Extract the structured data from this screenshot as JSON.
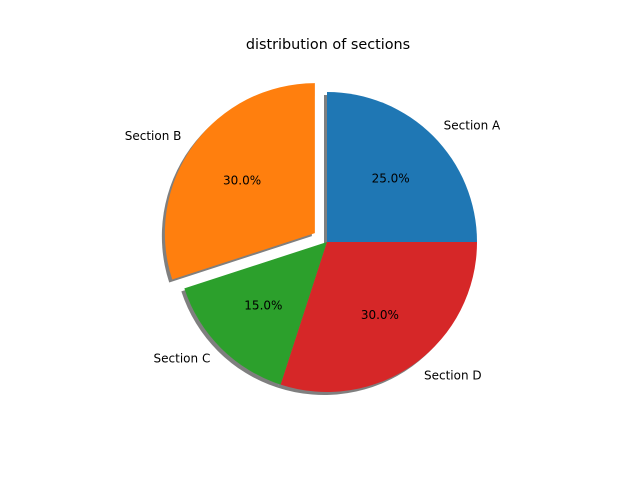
{
  "chart_data": {
    "type": "pie",
    "title": "distribution of sections",
    "categories": [
      "Section A",
      "Section B",
      "Section C",
      "Section D"
    ],
    "values": [
      25,
      30,
      15,
      30
    ],
    "value_labels": [
      "25.0%",
      "30.0%",
      "15.0%",
      "30.0%"
    ],
    "explode": [
      0.0,
      0.1,
      0.0,
      0.0
    ],
    "colors": [
      "#1f77b4",
      "#ff7f0e",
      "#2ca02c",
      "#d62728"
    ],
    "start_angle": 0,
    "counterclockwise": true,
    "shadow": true
  }
}
